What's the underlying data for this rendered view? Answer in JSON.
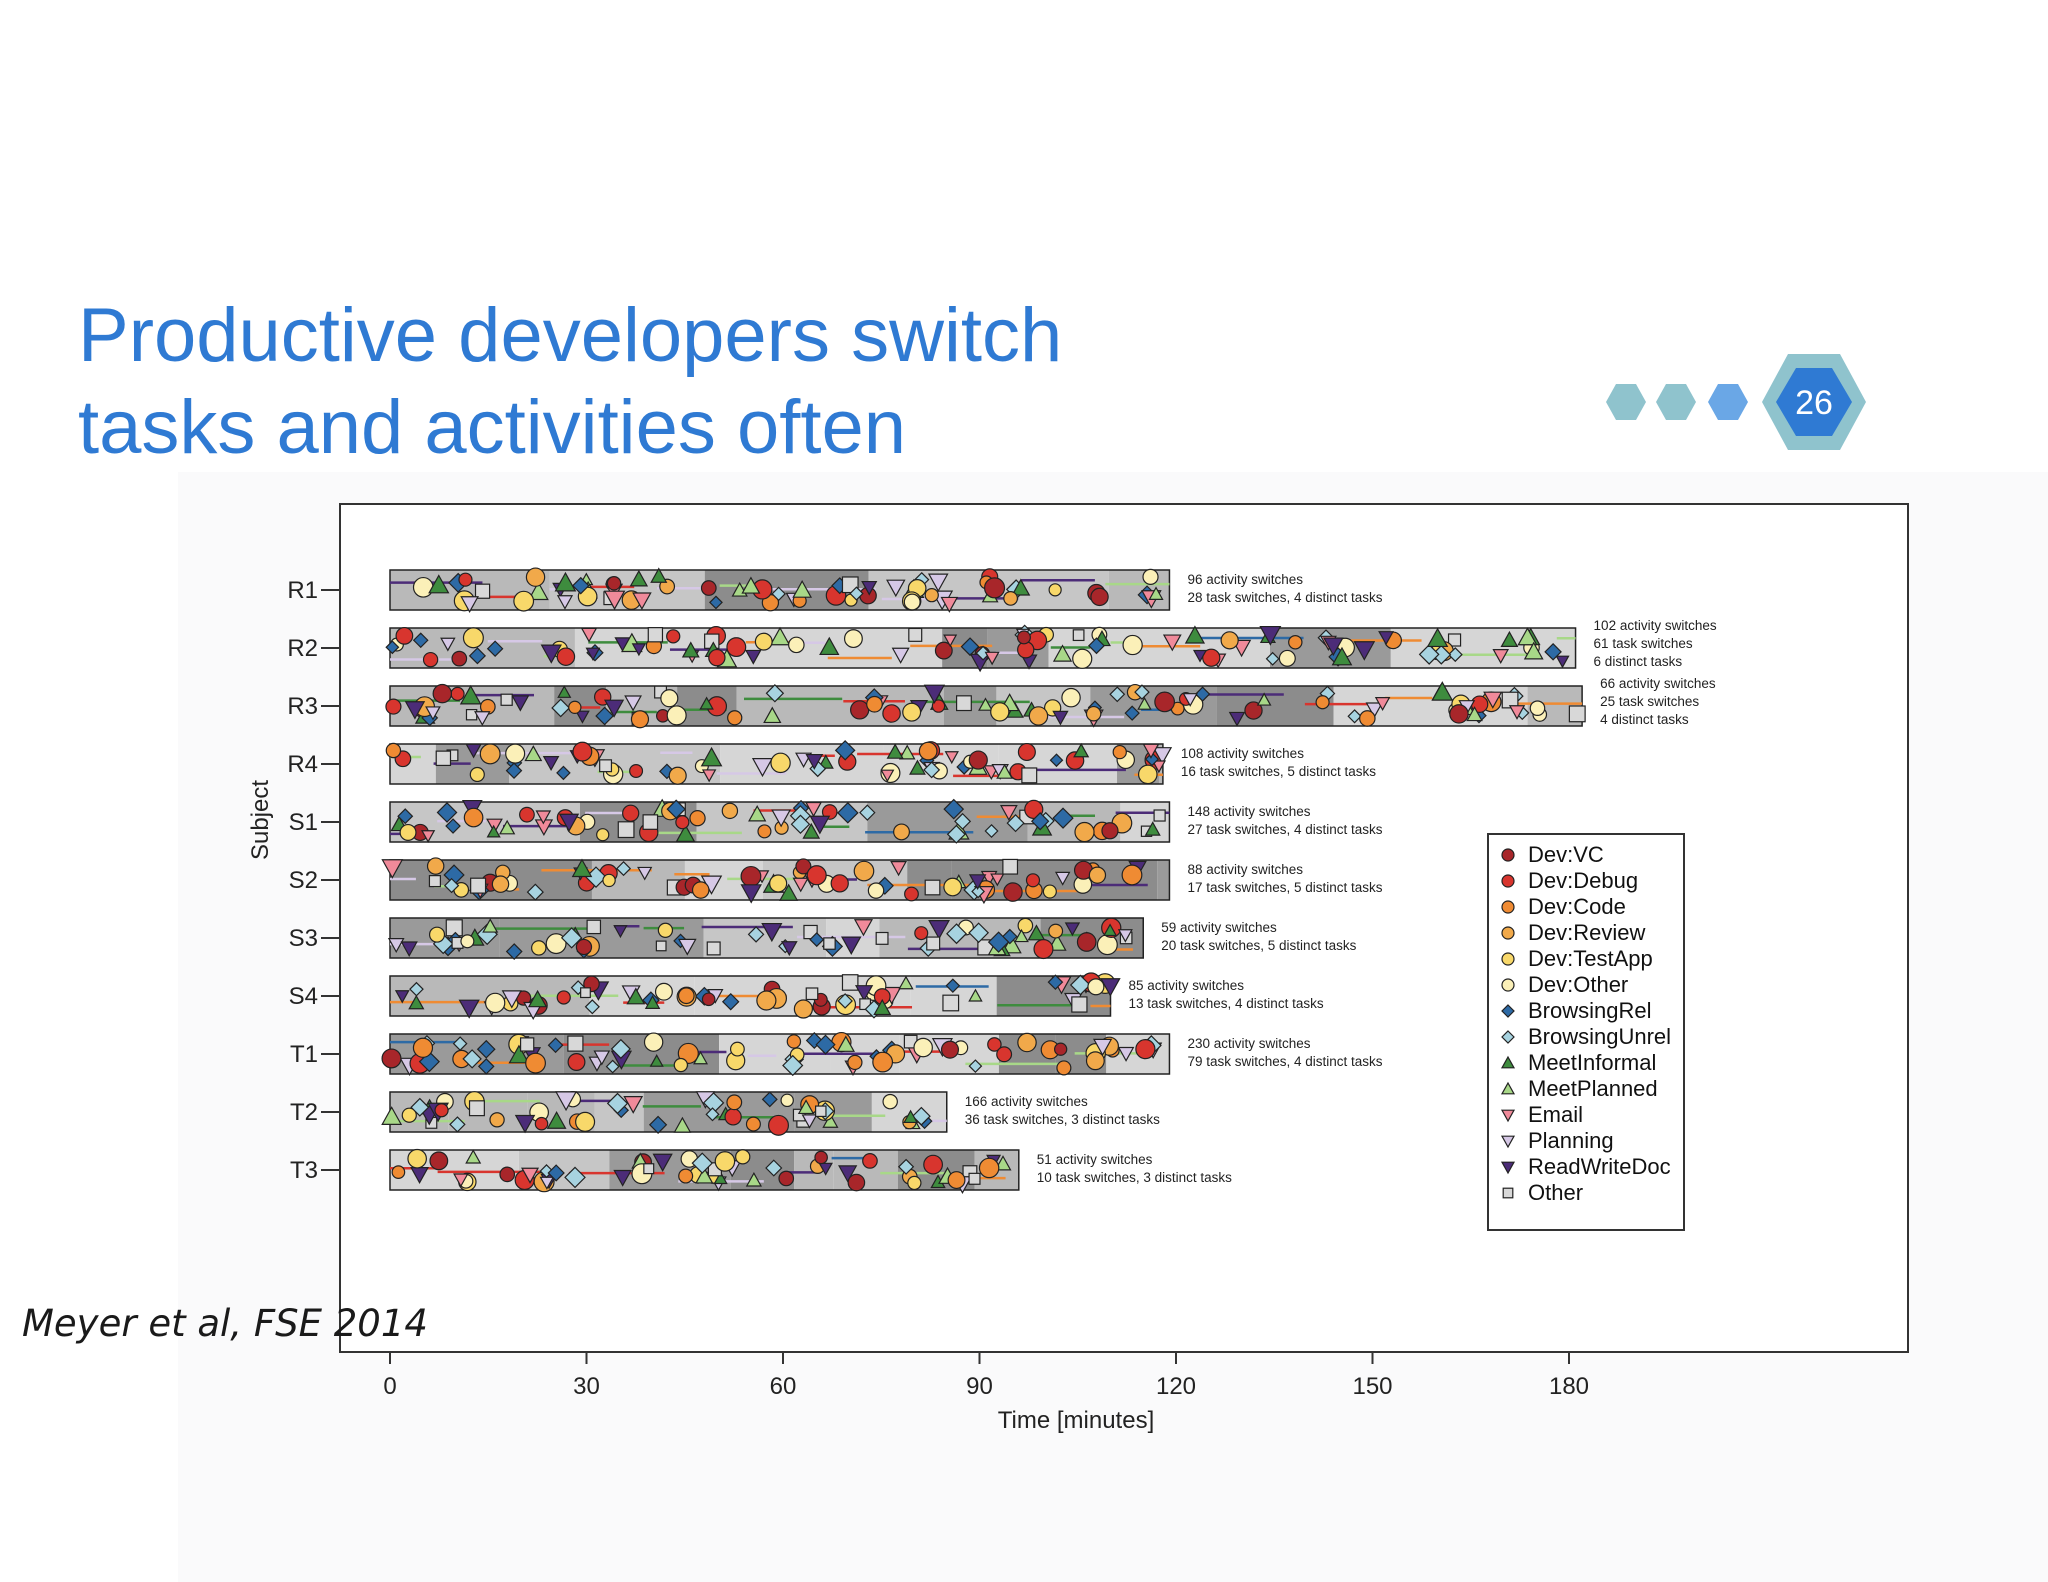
{
  "slide": {
    "title_line1": "Productive developers switch",
    "title_line2": "tasks and activities often",
    "page_number": "26",
    "citation": "Meyer et al, FSE 2014",
    "accent_color": "#2f7ad3"
  },
  "nav": {
    "dots": [
      "#8fc3cd",
      "#8fc3cd",
      "#6aa7e6"
    ],
    "badge_outer": "#8fc3cd",
    "badge_inner": "#2f7ad3"
  },
  "chart_data": {
    "type": "scatter",
    "xlabel": "Time [minutes]",
    "ylabel": "Subject",
    "xlim": [
      0,
      190
    ],
    "xticks": [
      0,
      30,
      60,
      90,
      120,
      150,
      180
    ],
    "legend_position": "right",
    "legend": [
      {
        "name": "Dev:VC",
        "marker": "circle",
        "color": "#a8262a"
      },
      {
        "name": "Dev:Debug",
        "marker": "circle",
        "color": "#d8352e"
      },
      {
        "name": "Dev:Code",
        "marker": "circle",
        "color": "#ef8b33"
      },
      {
        "name": "Dev:Review",
        "marker": "circle",
        "color": "#f1a94a"
      },
      {
        "name": "Dev:TestApp",
        "marker": "circle",
        "color": "#f8d86a"
      },
      {
        "name": "Dev:Other",
        "marker": "circle",
        "color": "#fbf0b8"
      },
      {
        "name": "BrowsingRel",
        "marker": "diamond",
        "color": "#2d6aa5"
      },
      {
        "name": "BrowsingUnrel",
        "marker": "diamond",
        "color": "#a7d3e0"
      },
      {
        "name": "MeetInformal",
        "marker": "triangle-up",
        "color": "#3e8c3e"
      },
      {
        "name": "MeetPlanned",
        "marker": "triangle-up",
        "color": "#a8d888"
      },
      {
        "name": "Email",
        "marker": "triangle-down",
        "color": "#f08a9a"
      },
      {
        "name": "Planning",
        "marker": "triangle-down",
        "color": "#d6c8e6"
      },
      {
        "name": "ReadWriteDoc",
        "marker": "triangle-down",
        "color": "#4c2c78"
      },
      {
        "name": "Other",
        "marker": "square",
        "color": "#d8d8d8"
      }
    ],
    "subjects": [
      {
        "name": "R1",
        "duration": 119,
        "annotation": [
          "96 activity switches",
          "28 task switches, 4 distinct tasks"
        ]
      },
      {
        "name": "R2",
        "duration": 181,
        "annotation": [
          "102 activity switches",
          "61 task switches",
          "6 distinct tasks"
        ]
      },
      {
        "name": "R3",
        "duration": 182,
        "annotation": [
          "66 activity switches",
          "25 task switches",
          "4 distinct tasks"
        ]
      },
      {
        "name": "R4",
        "duration": 118,
        "annotation": [
          "108 activity switches",
          "16 task switches, 5 distinct tasks"
        ]
      },
      {
        "name": "S1",
        "duration": 119,
        "annotation": [
          "148 activity switches",
          "27 task switches, 4 distinct tasks"
        ]
      },
      {
        "name": "S2",
        "duration": 119,
        "annotation": [
          "88 activity switches",
          "17 task switches, 5 distinct tasks"
        ]
      },
      {
        "name": "S3",
        "duration": 115,
        "annotation": [
          "59 activity switches",
          "20 task switches, 5 distinct tasks"
        ]
      },
      {
        "name": "S4",
        "duration": 110,
        "annotation": [
          "85 activity switches",
          "13 task switches, 4 distinct tasks"
        ]
      },
      {
        "name": "T1",
        "duration": 119,
        "annotation": [
          "230 activity switches",
          "79 task switches, 4 distinct tasks"
        ]
      },
      {
        "name": "T2",
        "duration": 85,
        "annotation": [
          "166 activity switches",
          "36 task switches, 3 distinct tasks"
        ]
      },
      {
        "name": "T3",
        "duration": 96,
        "annotation": [
          "51 activity switches",
          "10 task switches, 3 distinct tasks"
        ]
      }
    ]
  }
}
